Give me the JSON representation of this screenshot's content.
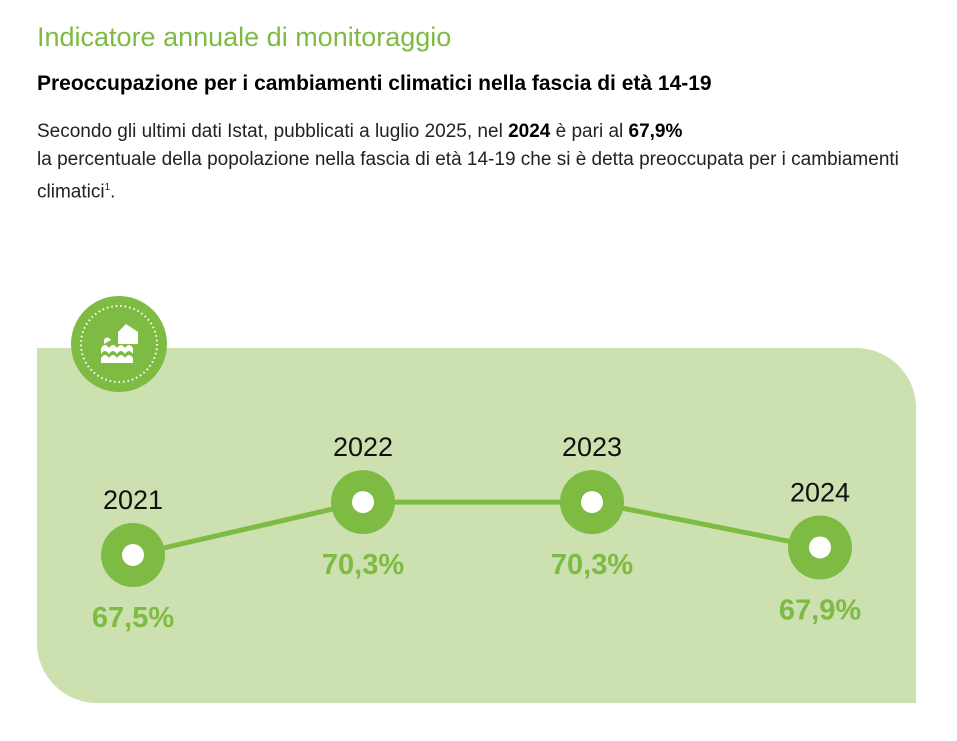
{
  "header": {
    "kicker": "Indicatore annuale di monitoraggio",
    "title": "Preoccupazione per i cambiamenti climatici nella fascia di età 14-19"
  },
  "intro": {
    "p1": "Secondo gli ultimi dati Istat, pubblicati a luglio 2025, nel ",
    "year": "2024",
    "p2": " è pari al ",
    "value": "67,9%",
    "p3": "la percentuale della popolazione nella fascia di età 14-19 che si è detta preoccupata per i cambiamenti climatici",
    "footnote": "1",
    "p4": "."
  },
  "colors": {
    "accent": "#7dbb42",
    "panel": "#cde0b0"
  },
  "icon": "flood-house-icon",
  "chart_data": {
    "type": "line",
    "title": "Preoccupazione per i cambiamenti climatici nella fascia di età 14-19",
    "categories": [
      "2021",
      "2022",
      "2023",
      "2024"
    ],
    "values": [
      67.5,
      70.3,
      70.3,
      67.9
    ],
    "labels": [
      "67,5%",
      "70,3%",
      "70,3%",
      "67,9%"
    ],
    "unit": "%"
  }
}
